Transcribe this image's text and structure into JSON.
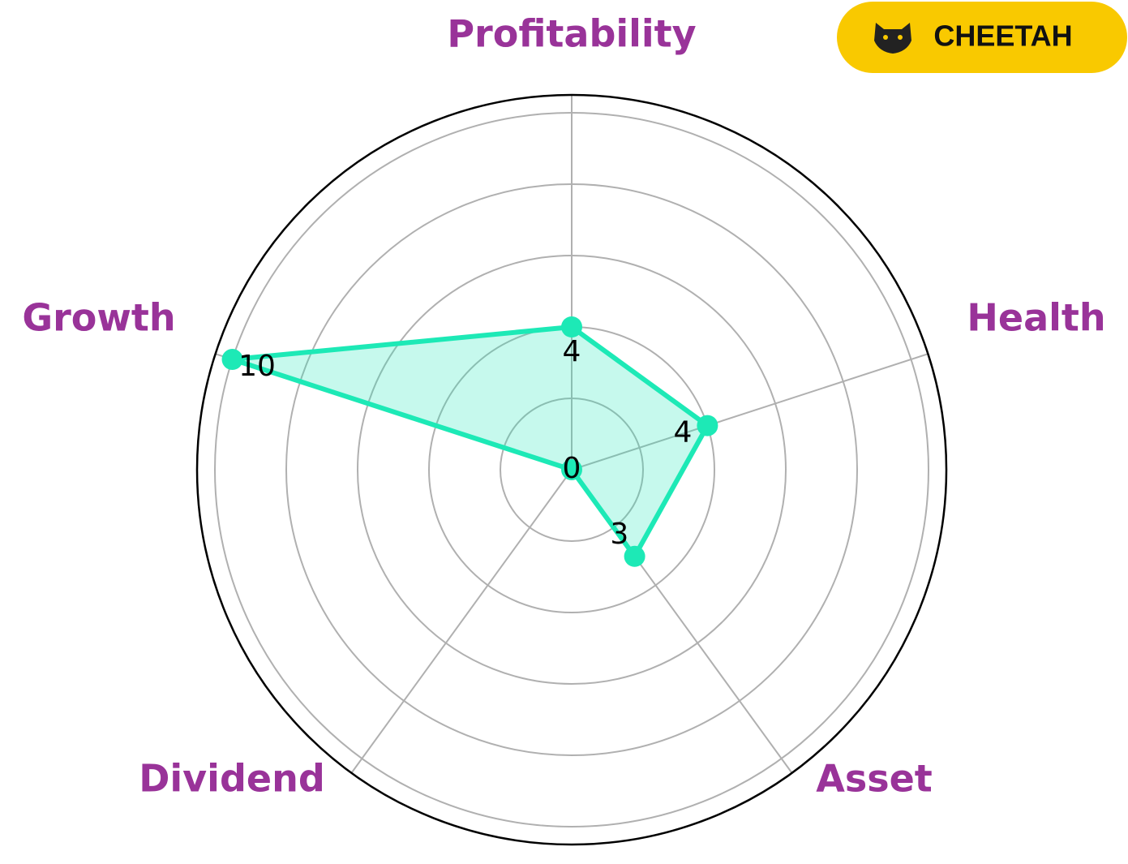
{
  "chart_data": {
    "type": "radar",
    "categories": [
      "Profitability",
      "Health",
      "Asset",
      "Dividend",
      "Growth"
    ],
    "values": [
      4,
      4,
      3,
      0,
      10
    ],
    "color": "#1de9b6",
    "label_color": "#993399",
    "ylim": [
      0,
      10.5
    ],
    "yticks": [
      2,
      4,
      6,
      8,
      10
    ],
    "grid": true
  },
  "badge": {
    "text": "CHEETAH"
  }
}
